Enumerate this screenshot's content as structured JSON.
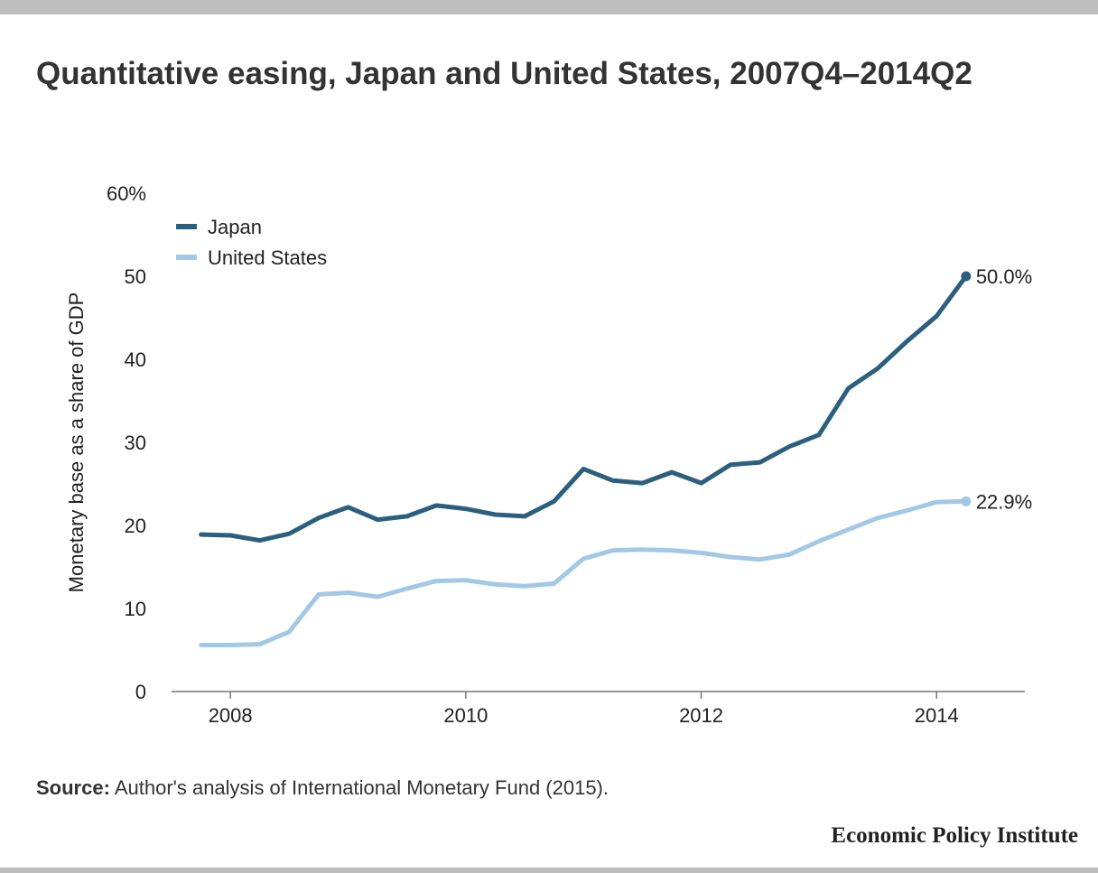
{
  "title": "Quantitative easing, Japan and United States, 2007Q4–2014Q2",
  "source_label": "Source:",
  "source_text": "Author's analysis of International Monetary Fund (2015).",
  "brand": "Economic Policy Institute",
  "chart_data": {
    "type": "line",
    "ylabel": "Monetary base as a share of GDP",
    "ylim": [
      0,
      60
    ],
    "y_ticks": [
      0,
      10,
      20,
      30,
      40,
      50
    ],
    "y_top_label": "60%",
    "x_ticks": [
      2008,
      2010,
      2012,
      2014
    ],
    "x_range": [
      2007.5,
      2014.75
    ],
    "grid": false,
    "legend_position": "top-left",
    "x": [
      2007.75,
      2008.0,
      2008.25,
      2008.5,
      2008.75,
      2009.0,
      2009.25,
      2009.5,
      2009.75,
      2010.0,
      2010.25,
      2010.5,
      2010.75,
      2011.0,
      2011.25,
      2011.5,
      2011.75,
      2012.0,
      2012.25,
      2012.5,
      2012.75,
      2013.0,
      2013.25,
      2013.5,
      2013.75,
      2014.0,
      2014.25
    ],
    "series": [
      {
        "name": "Japan",
        "color": "#2c5f7e",
        "end_label": "50.0%",
        "values": [
          18.9,
          18.8,
          18.2,
          19.0,
          20.9,
          22.2,
          20.7,
          21.1,
          22.4,
          22.0,
          21.3,
          21.1,
          22.9,
          26.8,
          25.4,
          25.1,
          26.4,
          25.1,
          27.3,
          27.6,
          29.5,
          30.9,
          36.5,
          38.9,
          42.2,
          45.2,
          50.0
        ]
      },
      {
        "name": "United States",
        "color": "#a3c8e6",
        "end_label": "22.9%",
        "values": [
          5.6,
          5.6,
          5.7,
          7.2,
          11.7,
          11.9,
          11.4,
          12.4,
          13.3,
          13.4,
          12.9,
          12.7,
          13.0,
          16.0,
          17.0,
          17.1,
          17.0,
          16.7,
          16.2,
          15.9,
          16.5,
          18.1,
          19.5,
          20.9,
          21.8,
          22.8,
          22.9
        ]
      }
    ]
  }
}
